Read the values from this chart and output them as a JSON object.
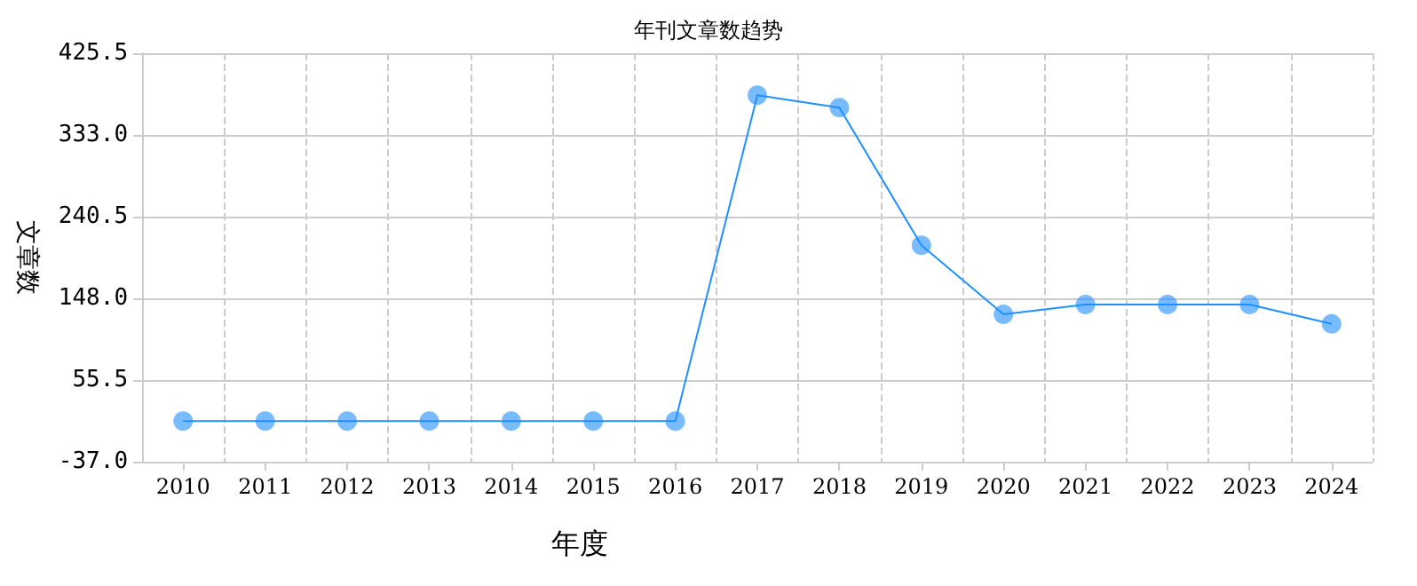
{
  "chart_data": {
    "type": "line",
    "title": "年刊文章数趋势",
    "xlabel": "年度",
    "ylabel": "文章数",
    "categories": [
      "2010",
      "2011",
      "2012",
      "2013",
      "2014",
      "2015",
      "2016",
      "2017",
      "2018",
      "2019",
      "2020",
      "2021",
      "2022",
      "2023",
      "2024"
    ],
    "series": [
      {
        "color": "#1e90ff",
        "values": [
          9,
          9,
          9,
          9,
          9,
          9,
          9,
          378,
          364,
          208,
          130,
          141,
          141,
          141,
          119
        ]
      }
    ],
    "ylim": [
      -37,
      425.5
    ],
    "yticks": [
      {
        "value": -37,
        "label": "-37.0"
      },
      {
        "value": 55.5,
        "label": "55.5"
      },
      {
        "value": 148,
        "label": "148.0"
      },
      {
        "value": 240.5,
        "label": "240.5"
      },
      {
        "value": 333,
        "label": "333.0"
      },
      {
        "value": 425.5,
        "label": "425.5"
      }
    ],
    "grid": true,
    "marker": "circle",
    "line_style": "solid"
  }
}
